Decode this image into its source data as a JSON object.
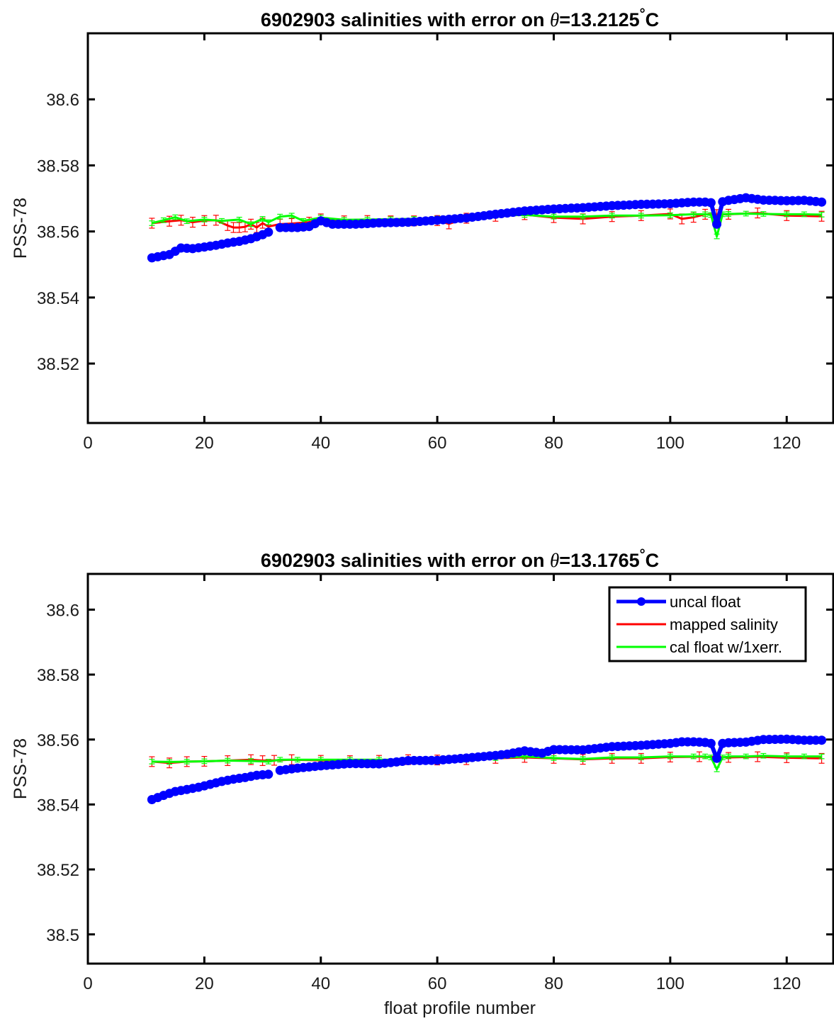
{
  "colors": {
    "uncal_float": "#0000ff",
    "mapped_salinity": "#ff0000",
    "cal_float": "#00ff00",
    "axes": "#000000"
  },
  "chart_data": [
    {
      "type": "line",
      "title_prefix": "6902903 salinities with error on ",
      "title_theta": "θ",
      "title_value": "=13.2125",
      "title_degree": "°",
      "title_unit": "C",
      "xlabel": "",
      "ylabel": "PSS-78",
      "xlim": [
        0,
        128
      ],
      "ylim": [
        38.502,
        38.62
      ],
      "xticks": [
        0,
        20,
        40,
        60,
        80,
        100,
        120
      ],
      "xtick_labels": [
        "0",
        "20",
        "40",
        "60",
        "80",
        "100",
        "120"
      ],
      "yticks": [
        38.52,
        38.54,
        38.56,
        38.58,
        38.6
      ],
      "ytick_labels": [
        "38.52",
        "38.54",
        "38.56",
        "38.58",
        "38.6"
      ],
      "legend": false,
      "grid": false,
      "series": [
        {
          "name": "uncal float",
          "style": "line-dot",
          "segments": [
            {
              "x": [
                11,
                14,
                16,
                18,
                20,
                22,
                24,
                26,
                28,
                30,
                31
              ],
              "y": [
                38.552,
                38.553,
                38.555,
                38.5548,
                38.5553,
                38.5558,
                38.5565,
                38.557,
                38.5578,
                38.559,
                38.5598
              ]
            },
            {
              "x": [
                33,
                36,
                38,
                40,
                42,
                46,
                50,
                55,
                60,
                65,
                70,
                75,
                80,
                85,
                90,
                95,
                100,
                104,
                106,
                107,
                108,
                109,
                110,
                113,
                116,
                120,
                123,
                126
              ],
              "y": [
                38.5612,
                38.5612,
                38.5615,
                38.5632,
                38.5622,
                38.5622,
                38.5626,
                38.5628,
                38.5634,
                38.5641,
                38.5652,
                38.5662,
                38.5668,
                38.5672,
                38.5678,
                38.5682,
                38.5684,
                38.5689,
                38.5689,
                38.5687,
                38.5622,
                38.569,
                38.5694,
                38.5702,
                38.5695,
                38.5693,
                38.5694,
                38.5689
              ]
            }
          ]
        },
        {
          "name": "mapped salinity",
          "style": "line-errorbar",
          "x": [
            11,
            14,
            16,
            18,
            20,
            22,
            24,
            25,
            26,
            27,
            28,
            29,
            30,
            31,
            33,
            35,
            38,
            40,
            44,
            48,
            52,
            56,
            60,
            62,
            65,
            70,
            75,
            80,
            85,
            90,
            95,
            100,
            102,
            104,
            106,
            108,
            110,
            115,
            120,
            126
          ],
          "y": [
            38.5625,
            38.5631,
            38.5634,
            38.5628,
            38.5633,
            38.5634,
            38.5618,
            38.5612,
            38.5612,
            38.5614,
            38.5622,
            38.5612,
            38.5625,
            38.5615,
            38.5622,
            38.5624,
            38.5628,
            38.5638,
            38.5632,
            38.5633,
            38.5632,
            38.5632,
            38.5633,
            38.5623,
            38.564,
            38.5646,
            38.5651,
            38.5642,
            38.5638,
            38.5645,
            38.5648,
            38.5653,
            38.5638,
            38.5643,
            38.5652,
            38.5651,
            38.5652,
            38.5656,
            38.5648,
            38.5646
          ],
          "error": 0.0015
        },
        {
          "name": "cal float w/1xerr.",
          "style": "line-errorbar",
          "x": [
            11,
            13,
            15,
            17,
            20,
            23,
            26,
            28,
            30,
            31,
            33,
            35,
            37,
            40,
            44,
            48,
            52,
            56,
            60,
            65,
            70,
            75,
            80,
            85,
            90,
            95,
            100,
            104,
            106,
            107,
            108,
            109,
            110,
            113,
            116,
            120,
            123,
            126
          ],
          "y": [
            38.5625,
            38.5634,
            38.5643,
            38.5631,
            38.5636,
            38.5632,
            38.5636,
            38.5622,
            38.5638,
            38.5628,
            38.5645,
            38.5648,
            38.5632,
            38.5642,
            38.5635,
            38.5636,
            38.5637,
            38.5638,
            38.5639,
            38.5642,
            38.5648,
            38.565,
            38.5645,
            38.5645,
            38.5648,
            38.5648,
            38.5649,
            38.5652,
            38.5652,
            38.565,
            38.5585,
            38.5652,
            38.5653,
            38.5654,
            38.5653,
            38.5652,
            38.5652,
            38.5651
          ],
          "error": 0.0007
        }
      ]
    },
    {
      "type": "line",
      "title_prefix": "6902903 salinities with error on ",
      "title_theta": "θ",
      "title_value": "=13.1765",
      "title_degree": "°",
      "title_unit": "C",
      "xlabel": "float profile number",
      "ylabel": "PSS-78",
      "xlim": [
        0,
        128
      ],
      "ylim": [
        38.491,
        38.611
      ],
      "xticks": [
        0,
        20,
        40,
        60,
        80,
        100,
        120
      ],
      "xtick_labels": [
        "0",
        "20",
        "40",
        "60",
        "80",
        "100",
        "120"
      ],
      "yticks": [
        38.5,
        38.52,
        38.54,
        38.56,
        38.58,
        38.6
      ],
      "ytick_labels": [
        "38.5",
        "38.52",
        "38.54",
        "38.56",
        "38.58",
        "38.6"
      ],
      "legend": true,
      "legend_location": "top-right",
      "legend_entries": [
        "uncal float",
        "mapped salinity",
        "cal float w/1xerr."
      ],
      "grid": false,
      "series": [
        {
          "name": "uncal float",
          "style": "line-dot",
          "segments": [
            {
              "x": [
                11,
                13,
                15,
                17,
                19,
                21,
                23,
                25,
                27,
                29,
                31
              ],
              "y": [
                38.5415,
                38.5428,
                38.544,
                38.5446,
                38.5453,
                38.5462,
                38.5471,
                38.5478,
                38.5483,
                38.549,
                38.5493
              ]
            },
            {
              "x": [
                33,
                36,
                40,
                45,
                50,
                55,
                60,
                65,
                70,
                72,
                75,
                78,
                80,
                85,
                90,
                95,
                100,
                102,
                104,
                106,
                107,
                108,
                109,
                110,
                113,
                116,
                120,
                123,
                126
              ],
              "y": [
                38.5505,
                38.5512,
                38.5519,
                38.5526,
                38.5525,
                38.5535,
                38.5536,
                38.5543,
                38.5551,
                38.5555,
                38.5565,
                38.5558,
                38.5569,
                38.5568,
                38.5578,
                38.5582,
                38.5588,
                38.5593,
                38.5593,
                38.5591,
                38.5588,
                38.5542,
                38.5588,
                38.559,
                38.5592,
                38.56,
                38.5601,
                38.5598,
                38.5598
              ]
            }
          ]
        },
        {
          "name": "mapped salinity",
          "style": "line-errorbar",
          "x": [
            11,
            14,
            17,
            20,
            24,
            28,
            30,
            32,
            35,
            40,
            45,
            50,
            55,
            60,
            65,
            70,
            75,
            80,
            85,
            90,
            95,
            100,
            105,
            110,
            115,
            120,
            126
          ],
          "y": [
            38.5532,
            38.5528,
            38.5532,
            38.5533,
            38.5535,
            38.5538,
            38.5535,
            38.5536,
            38.5538,
            38.5536,
            38.5535,
            38.5536,
            38.5538,
            38.5537,
            38.5538,
            38.5542,
            38.5545,
            38.5542,
            38.5539,
            38.5542,
            38.5542,
            38.5546,
            38.5547,
            38.5545,
            38.5547,
            38.5544,
            38.5542
          ],
          "error": 0.0015
        },
        {
          "name": "cal float w/1xerr.",
          "style": "line-errorbar",
          "x": [
            11,
            14,
            17,
            20,
            24,
            28,
            31,
            33,
            36,
            40,
            45,
            50,
            55,
            60,
            65,
            70,
            75,
            80,
            85,
            90,
            95,
            100,
            104,
            106,
            107,
            108,
            109,
            110,
            113,
            116,
            120,
            123,
            126
          ],
          "y": [
            38.5532,
            38.5531,
            38.5532,
            38.5533,
            38.5535,
            38.5534,
            38.5532,
            38.5538,
            38.5538,
            38.5538,
            38.5538,
            38.5538,
            38.5538,
            38.5538,
            38.5538,
            38.5543,
            38.5548,
            38.5543,
            38.554,
            38.5545,
            38.5545,
            38.5548,
            38.5548,
            38.5548,
            38.5545,
            38.5508,
            38.5545,
            38.5548,
            38.5548,
            38.555,
            38.5548,
            38.5548,
            38.5548
          ],
          "error": 0.0007
        }
      ]
    }
  ]
}
